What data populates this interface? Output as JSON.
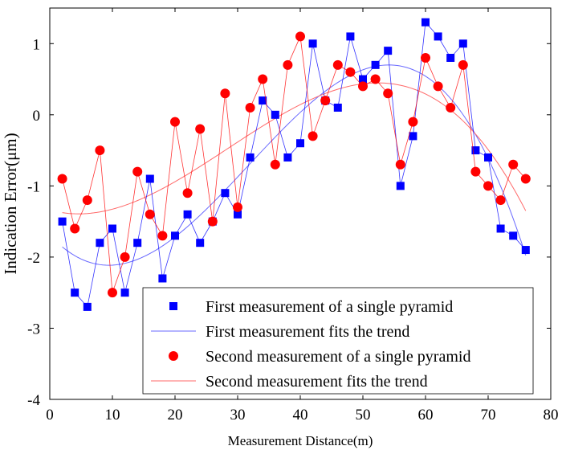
{
  "chart_data": {
    "type": "scatter",
    "title": "",
    "xlabel": "Measurement Distance(m)",
    "ylabel": "Indication Error(μm)",
    "xlim": [
      0,
      80
    ],
    "ylim": [
      -4,
      1.5
    ],
    "xticks": [
      0,
      10,
      20,
      30,
      40,
      50,
      60,
      70,
      80
    ],
    "yticks": [
      -4,
      -3,
      -2,
      -1,
      0,
      1
    ],
    "grid": false,
    "legend_position": "bottom-right",
    "x": [
      2,
      4,
      6,
      8,
      10,
      12,
      14,
      16,
      18,
      20,
      22,
      24,
      26,
      28,
      30,
      32,
      34,
      36,
      38,
      40,
      42,
      44,
      46,
      48,
      50,
      52,
      54,
      56,
      58,
      60,
      62,
      64,
      66,
      68,
      70,
      72,
      74,
      76
    ],
    "series": [
      {
        "name": "First measurement of a single pyramid",
        "marker": "square",
        "color": "#0000ff",
        "values": [
          -1.5,
          -2.5,
          -2.7,
          -1.8,
          -1.6,
          -2.5,
          -1.8,
          -0.9,
          -2.3,
          -1.7,
          -1.4,
          -1.8,
          -1.5,
          -1.1,
          -1.4,
          -0.6,
          0.2,
          0.0,
          -0.6,
          -0.4,
          1.0,
          0.2,
          0.1,
          1.1,
          0.5,
          0.7,
          0.9,
          -1.0,
          -0.3,
          1.3,
          1.1,
          0.8,
          1.0,
          -0.5,
          -0.6,
          -1.6,
          -1.7,
          -1.9
        ]
      },
      {
        "name": "First measurement fits the trend",
        "type": "line",
        "color": "#6a6aff",
        "fit_of": 0
      },
      {
        "name": "Second measurement of a single pyramid",
        "marker": "circle",
        "color": "#ff0000",
        "values": [
          -0.9,
          -1.6,
          -1.2,
          -0.5,
          -2.5,
          -2.0,
          -0.8,
          -1.4,
          -1.7,
          -0.1,
          -1.1,
          -0.2,
          -1.5,
          0.3,
          -1.3,
          0.1,
          0.5,
          -0.7,
          0.7,
          1.1,
          -0.3,
          0.2,
          0.7,
          0.6,
          0.4,
          0.5,
          0.3,
          -0.7,
          -0.1,
          0.8,
          0.4,
          0.1,
          0.7,
          -0.8,
          -1.0,
          -1.2,
          -0.7,
          -0.9
        ]
      },
      {
        "name": "Second measurement fits the trend",
        "type": "line",
        "color": "#ff6a6a",
        "fit_of": 2
      }
    ]
  }
}
